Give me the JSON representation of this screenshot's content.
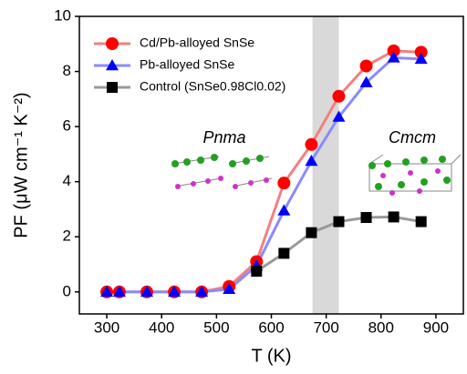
{
  "chart_data": {
    "type": "line",
    "x": [
      300,
      323,
      373,
      423,
      473,
      523,
      573,
      623,
      673,
      723,
      773,
      823,
      873
    ],
    "series": [
      {
        "name": "Cd/Pb-alloyed SnSe",
        "color": "#ff0000",
        "line_color": "#f28080",
        "marker": "circle",
        "values": [
          0,
          0,
          0,
          0,
          0,
          0.2,
          1.1,
          3.95,
          5.35,
          7.1,
          8.2,
          8.75,
          8.7
        ]
      },
      {
        "name": "Pb-alloyed SnSe",
        "color": "#0000ff",
        "line_color": "#8a8aff",
        "marker": "triangle",
        "values": [
          0,
          0,
          0,
          0,
          0,
          0.1,
          0.95,
          2.95,
          4.75,
          6.35,
          7.6,
          8.5,
          8.45
        ]
      },
      {
        "name": "Control (SnSe0.98Cl0.02)",
        "color": "#000000",
        "line_color": "#999999",
        "marker": "square",
        "values": [
          null,
          null,
          null,
          null,
          null,
          null,
          0.75,
          1.4,
          2.15,
          2.55,
          2.7,
          2.72,
          2.55
        ]
      }
    ],
    "xlabel": "T (K)",
    "ylabel": "PF (μW cm⁻¹ K⁻²)",
    "xlim": [
      250,
      950
    ],
    "ylim": [
      -0.8,
      10
    ],
    "xticks": [
      300,
      400,
      500,
      600,
      700,
      800,
      900
    ],
    "yticks": [
      0,
      2,
      4,
      6,
      8,
      10
    ],
    "highlight_x": [
      675,
      723
    ],
    "annotations": [
      "Pnma",
      "Cmcm"
    ]
  }
}
